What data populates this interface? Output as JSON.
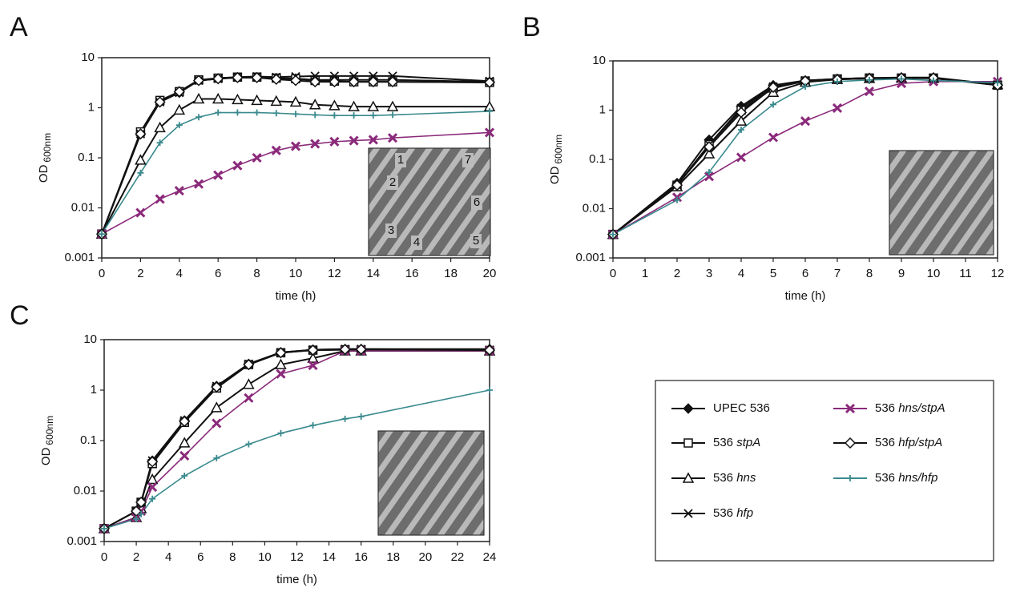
{
  "chart_data": [
    {
      "type": "line",
      "panel": "A",
      "ylabel": "OD",
      "ylabel_subscript": "600nm",
      "xlabel": "time (h)",
      "yscale": "log",
      "ylim": [
        0.001,
        10
      ],
      "yticks": [
        0.001,
        0.01,
        0.1,
        1,
        10
      ],
      "xlim": [
        0,
        20
      ],
      "xticks": [
        0,
        2,
        4,
        6,
        8,
        10,
        12,
        14,
        16,
        18,
        20
      ],
      "inset_labels": [
        "1",
        "2",
        "3",
        "4",
        "5",
        "6",
        "7"
      ],
      "x": [
        0,
        2,
        3,
        4,
        5,
        6,
        7,
        8,
        9,
        10,
        11,
        12,
        13,
        14,
        15,
        20
      ],
      "series": [
        {
          "name": "UPEC 536",
          "color": "#111111",
          "marker": "diamond-filled",
          "values": [
            0.003,
            0.3,
            1.3,
            2,
            3.5,
            3.8,
            4,
            4,
            3.9,
            3.8,
            3.6,
            3.6,
            3.6,
            3.6,
            3.6,
            3.3
          ]
        },
        {
          "name": "536 stpA",
          "color": "#111111",
          "marker": "square-open",
          "values": [
            0.003,
            0.33,
            1.4,
            2.1,
            3.6,
            3.9,
            4.1,
            4.1,
            3.9,
            3.8,
            3.5,
            3.4,
            3.3,
            3.3,
            3.3,
            3.2
          ]
        },
        {
          "name": "536 hns",
          "color": "#111111",
          "marker": "triangle-open",
          "values": [
            0.003,
            0.09,
            0.4,
            0.9,
            1.5,
            1.5,
            1.45,
            1.4,
            1.35,
            1.3,
            1.15,
            1.1,
            1.05,
            1.05,
            1.05,
            1.05
          ]
        },
        {
          "name": "536 hfp",
          "color": "#111111",
          "marker": "cross",
          "values": [
            0.003,
            0.3,
            1.3,
            2,
            3.5,
            3.8,
            4.1,
            4.2,
            4.1,
            4.2,
            4.3,
            4.3,
            4.3,
            4.3,
            4.3,
            3.4
          ]
        },
        {
          "name": "536 hns/stpA",
          "color": "#8b2a7a",
          "marker": "star",
          "values": [
            0.003,
            0.008,
            0.015,
            0.022,
            0.03,
            0.045,
            0.07,
            0.1,
            0.14,
            0.17,
            0.19,
            0.21,
            0.22,
            0.23,
            0.25,
            0.32
          ]
        },
        {
          "name": "536 hfp/stpA",
          "color": "#111111",
          "marker": "diamond-open",
          "values": [
            0.003,
            0.3,
            1.3,
            2.1,
            3.5,
            3.8,
            4,
            4,
            3.7,
            3.5,
            3.3,
            3.3,
            3.3,
            3.3,
            3.3,
            3.2
          ]
        },
        {
          "name": "536 hns/hfp",
          "color": "#3a8a8e",
          "marker": "plus",
          "values": [
            0.003,
            0.05,
            0.2,
            0.45,
            0.65,
            0.8,
            0.8,
            0.8,
            0.78,
            0.75,
            0.72,
            0.7,
            0.7,
            0.7,
            0.72,
            0.85
          ]
        }
      ]
    },
    {
      "type": "line",
      "panel": "B",
      "ylabel": "OD",
      "ylabel_subscript": "600nm",
      "xlabel": "time (h)",
      "yscale": "log",
      "ylim": [
        0.001,
        10
      ],
      "yticks": [
        0.001,
        0.01,
        0.1,
        1,
        10
      ],
      "xlim": [
        0,
        12
      ],
      "xticks": [
        0,
        1,
        2,
        3,
        4,
        5,
        6,
        7,
        8,
        9,
        10,
        11,
        12
      ],
      "x": [
        0,
        2,
        3,
        4,
        5,
        6,
        7,
        8,
        9,
        10,
        12
      ],
      "series": [
        {
          "name": "UPEC 536",
          "color": "#111111",
          "marker": "diamond-filled",
          "values": [
            0.003,
            0.033,
            0.25,
            1.2,
            3.2,
            4,
            4.3,
            4.5,
            4.6,
            4.6,
            3.3
          ]
        },
        {
          "name": "536 stpA",
          "color": "#111111",
          "marker": "square-open",
          "values": [
            0.003,
            0.03,
            0.2,
            1,
            2.8,
            3.9,
            4.3,
            4.5,
            4.5,
            4.5,
            3.2
          ]
        },
        {
          "name": "536 hns",
          "color": "#111111",
          "marker": "triangle-open",
          "values": [
            0.003,
            0.028,
            0.13,
            0.6,
            2.3,
            3.7,
            4.2,
            4.4,
            4.5,
            4.4,
            3.3
          ]
        },
        {
          "name": "536 hfp",
          "color": "#111111",
          "marker": "cross",
          "values": [
            0.003,
            0.03,
            0.2,
            1.1,
            3,
            4,
            4.3,
            4.5,
            4.5,
            4.5,
            3.3
          ]
        },
        {
          "name": "536 hns/stpA",
          "color": "#8b2a7a",
          "marker": "star",
          "values": [
            0.003,
            0.017,
            0.045,
            0.11,
            0.28,
            0.6,
            1.1,
            2.4,
            3.5,
            3.8,
            3.8
          ]
        },
        {
          "name": "536 hfp/stpA",
          "color": "#111111",
          "marker": "diamond-open",
          "values": [
            0.003,
            0.03,
            0.18,
            0.9,
            2.9,
            3.9,
            4.2,
            4.4,
            4.5,
            4.5,
            3.2
          ]
        },
        {
          "name": "536 hns/hfp",
          "color": "#3a8a8e",
          "marker": "plus",
          "values": [
            0.003,
            0.015,
            0.055,
            0.4,
            1.3,
            3,
            3.8,
            4.1,
            4.3,
            4,
            3.6
          ]
        }
      ]
    },
    {
      "type": "line",
      "panel": "C",
      "ylabel": "OD",
      "ylabel_subscript": "600nm",
      "xlabel": "time (h)",
      "yscale": "log",
      "ylim": [
        0.001,
        10
      ],
      "yticks": [
        0.001,
        0.01,
        0.1,
        1,
        10
      ],
      "xlim": [
        0,
        24
      ],
      "xticks": [
        0,
        2,
        4,
        6,
        8,
        10,
        12,
        14,
        16,
        18,
        20,
        22,
        24
      ],
      "x": [
        0,
        2,
        2.3,
        3,
        5,
        7,
        9,
        11,
        13,
        15,
        16,
        24
      ],
      "series": [
        {
          "name": "UPEC 536",
          "color": "#111111",
          "marker": "diamond-filled",
          "values": [
            0.0018,
            0.004,
            0.006,
            0.04,
            0.25,
            1.2,
            3.3,
            5.6,
            6.3,
            6.5,
            6.5,
            6.5
          ]
        },
        {
          "name": "536 stpA",
          "color": "#111111",
          "marker": "square-open",
          "values": [
            0.0018,
            0.004,
            0.006,
            0.035,
            0.23,
            1.1,
            3.2,
            5.5,
            6.2,
            6.3,
            6.2,
            6
          ]
        },
        {
          "name": "536 hns",
          "color": "#111111",
          "marker": "triangle-open",
          "values": [
            0.0018,
            0.003,
            0.0045,
            0.017,
            0.09,
            0.45,
            1.3,
            3.2,
            4.3,
            6,
            6,
            6
          ]
        },
        {
          "name": "536 hfp",
          "color": "#111111",
          "marker": "cross",
          "values": [
            0.0018,
            0.004,
            0.006,
            0.04,
            0.25,
            1.2,
            3.3,
            5.6,
            6.3,
            6.5,
            6.5,
            6.3
          ]
        },
        {
          "name": "536 hns/stpA",
          "color": "#8b2a7a",
          "marker": "star",
          "values": [
            0.0018,
            0.003,
            0.004,
            0.012,
            0.05,
            0.22,
            0.7,
            2.1,
            3.1,
            6,
            6,
            6
          ]
        },
        {
          "name": "536 hfp/stpA",
          "color": "#111111",
          "marker": "diamond-open",
          "values": [
            0.0018,
            0.004,
            0.006,
            0.038,
            0.24,
            1.15,
            3.2,
            5.5,
            6.2,
            6.4,
            6.4,
            6.2
          ]
        },
        {
          "name": "536 hns/hfp",
          "color": "#3a8a8e",
          "marker": "plus",
          "values": [
            0.0018,
            0.0028,
            0.0035,
            0.007,
            0.02,
            0.045,
            0.085,
            0.14,
            0.2,
            0.27,
            0.3,
            1
          ]
        }
      ]
    }
  ]
}
